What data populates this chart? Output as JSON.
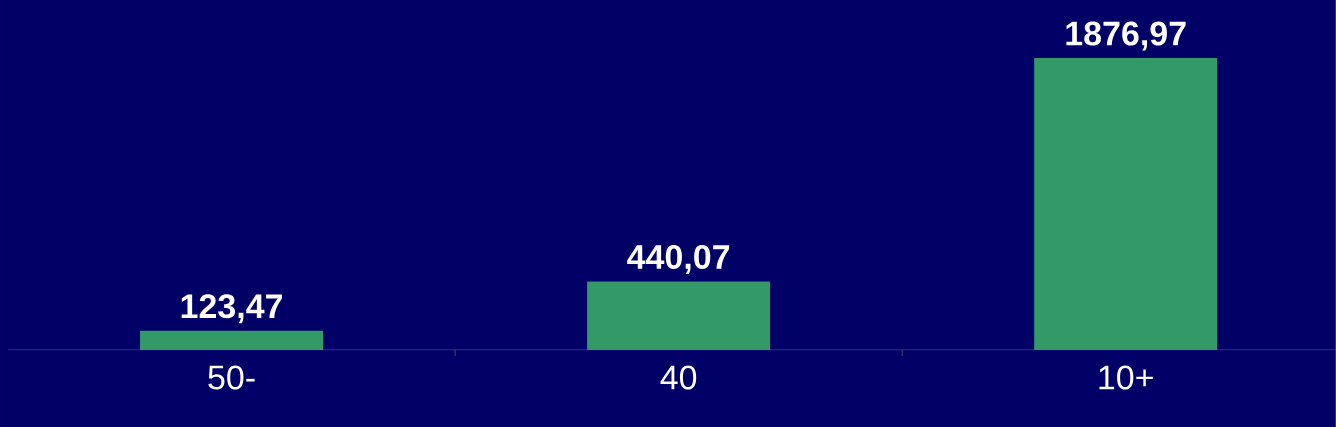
{
  "chart_data": {
    "type": "bar",
    "categories": [
      "50-",
      "40",
      "10+"
    ],
    "values": [
      123.47,
      440.07,
      1876.97
    ],
    "value_labels": [
      "123,47",
      "440,07",
      "1876,97"
    ],
    "color": "#339966",
    "ylim": [
      0,
      2250
    ]
  }
}
